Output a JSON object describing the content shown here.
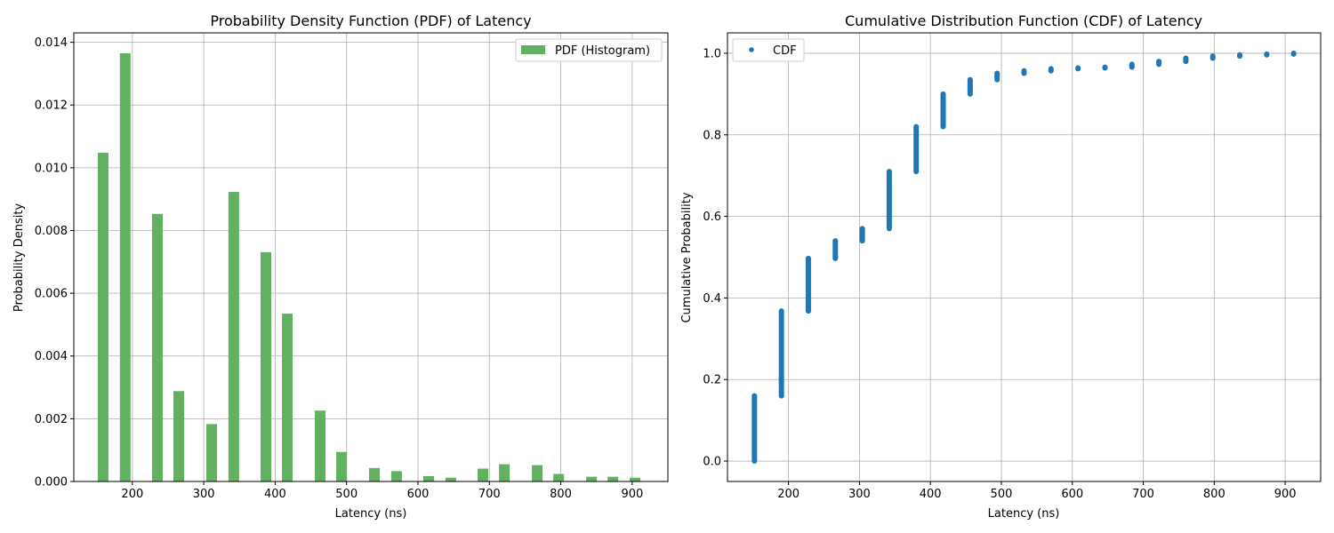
{
  "colors": {
    "pdf_bar": "#63b063",
    "cdf_point": "#1f77b4",
    "grid": "#b0b0b0",
    "axis": "#000000"
  },
  "chart_data": [
    {
      "type": "bar",
      "title": "Probability Density Function (PDF) of Latency",
      "xlabel": "Latency (ns)",
      "ylabel": "Probability Density",
      "xlim": [
        118,
        950
      ],
      "ylim": [
        0,
        0.0143
      ],
      "xticks": [
        200,
        300,
        400,
        500,
        600,
        700,
        800,
        900
      ],
      "yticks": [
        0.0,
        0.002,
        0.004,
        0.006,
        0.008,
        0.01,
        0.012,
        0.014
      ],
      "ytick_labels": [
        "0.000",
        "0.002",
        "0.004",
        "0.006",
        "0.008",
        "0.010",
        "0.012",
        "0.014"
      ],
      "grid": true,
      "legend_position": "top-right",
      "bar_width": 15,
      "series": [
        {
          "name": "PDF (Histogram)",
          "x": [
            159,
            190,
            235,
            265,
            311,
            342,
            387,
            417,
            463,
            493,
            539,
            570,
            615,
            646,
            691,
            721,
            767,
            797,
            843,
            873,
            904
          ],
          "values": [
            0.01048,
            0.01365,
            0.00853,
            0.00288,
            0.00183,
            0.00923,
            0.00731,
            0.00535,
            0.00226,
            0.00094,
            0.00043,
            0.00033,
            0.00017,
            0.00012,
            0.00041,
            0.00055,
            0.00052,
            0.00024,
            0.00015,
            0.00015,
            0.00012
          ]
        }
      ]
    },
    {
      "type": "scatter",
      "title": "Cumulative Distribution Function (CDF) of Latency",
      "xlabel": "Latency (ns)",
      "ylabel": "Cumulative Probability",
      "xlim": [
        114,
        950
      ],
      "ylim": [
        -0.05,
        1.05
      ],
      "xticks": [
        200,
        300,
        400,
        500,
        600,
        700,
        800,
        900
      ],
      "yticks": [
        0.0,
        0.2,
        0.4,
        0.6,
        0.8,
        1.0
      ],
      "ytick_labels": [
        "0.0",
        "0.2",
        "0.4",
        "0.6",
        "0.8",
        "1.0"
      ],
      "grid": true,
      "legend_position": "top-left",
      "series": [
        {
          "name": "CDF",
          "x": [
            152,
            190,
            228,
            266,
            304,
            342,
            380,
            418,
            456,
            494,
            532,
            570,
            608,
            646,
            684,
            722,
            760,
            798,
            836,
            874,
            912
          ],
          "y_start": [
            0.0,
            0.16,
            0.368,
            0.497,
            0.54,
            0.57,
            0.71,
            0.82,
            0.9,
            0.935,
            0.951,
            0.957,
            0.962,
            0.964,
            0.966,
            0.973,
            0.98,
            0.988,
            0.993,
            0.996,
            0.998
          ],
          "y_end": [
            0.16,
            0.368,
            0.497,
            0.54,
            0.57,
            0.71,
            0.82,
            0.9,
            0.935,
            0.951,
            0.957,
            0.962,
            0.964,
            0.966,
            0.973,
            0.98,
            0.988,
            0.993,
            0.996,
            0.998,
            1.0
          ]
        }
      ]
    }
  ]
}
